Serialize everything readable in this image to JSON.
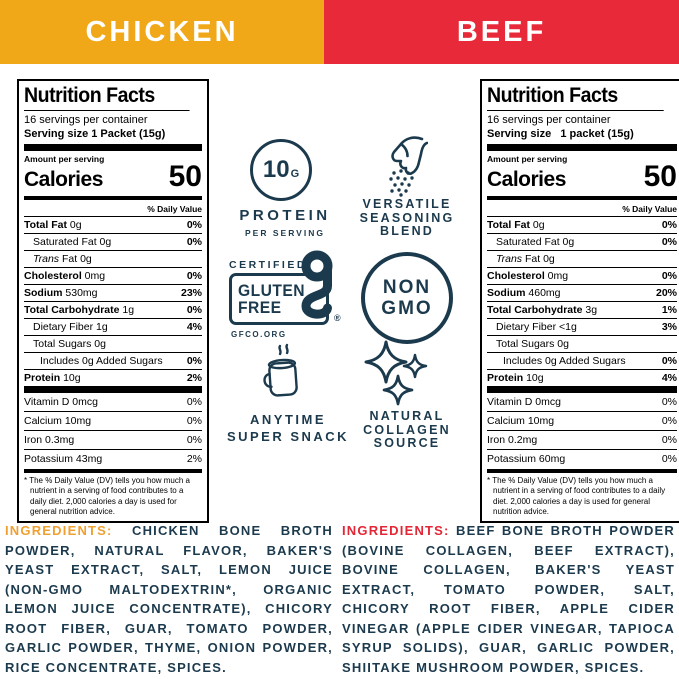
{
  "colors": {
    "yellow": "#F0A818",
    "red": "#E8293A",
    "navy": "#1C3A4D",
    "ing_left": "#F0A030",
    "ing_right": "#E32636"
  },
  "header": {
    "chicken_label": "CHICKEN",
    "beef_label": "BEEF"
  },
  "labels": [
    {
      "title": "Nutrition Facts",
      "servings_per_container": "16 servings per container",
      "serving_size": "Serving size 1 Packet (15g)",
      "amount_per_serving": "Amount per serving",
      "calories_label": "Calories",
      "calories_value": "50",
      "daily_value_header": "% Daily Value",
      "rows": [
        {
          "bold": "Total Fat",
          "text": " 0g",
          "dv": "0%",
          "dvBold": true
        },
        {
          "text": "Saturated Fat 0g",
          "dv": "0%",
          "dvBold": true,
          "style": "ind1"
        },
        {
          "italic": "Trans",
          "text": " Fat 0g",
          "style": "ind1"
        },
        {
          "bold": "Cholesterol",
          "text": " 0mg",
          "dv": "0%",
          "dvBold": true
        },
        {
          "bold": "Sodium",
          "text": " 530mg",
          "dv": "23%",
          "dvBold": true
        },
        {
          "bold": "Total Carbohydrate",
          "text": " 1g",
          "dv": "0%",
          "dvBold": true
        },
        {
          "text": "Dietary Fiber 1g",
          "dv": "4%",
          "dvBold": true,
          "style": "ind1"
        },
        {
          "text": "Total Sugars 0g",
          "style": "ind1"
        },
        {
          "text": "Includes 0g Added Sugars",
          "dv": "0%",
          "dvBold": true,
          "style": "ind2"
        },
        {
          "bold": "Protein",
          "text": " 10g",
          "dv": "2%",
          "dvBold": true
        }
      ],
      "vitamin_rows": [
        {
          "text": "Vitamin D 0mcg",
          "dv": "0%"
        },
        {
          "text": "Calcium 10mg",
          "dv": "0%"
        },
        {
          "text": "Iron 0.3mg",
          "dv": "0%"
        },
        {
          "text": "Potassium 43mg",
          "dv": "2%"
        }
      ],
      "footnote": "* The % Daily Value (DV) tells you how much a nutrient in a serving of food contributes to a daily diet. 2,000 calories a day is used for general nutrition advice."
    },
    {
      "title": "Nutrition Facts",
      "servings_per_container": "16 servings per container",
      "serving_size": "Serving size   1 packet (15g)",
      "amount_per_serving": "Amount per serving",
      "calories_label": "Calories",
      "calories_value": "50",
      "daily_value_header": "% Daily Value",
      "rows": [
        {
          "bold": "Total Fat",
          "text": " 0g",
          "dv": "0%",
          "dvBold": true
        },
        {
          "text": "Saturated Fat 0g",
          "dv": "0%",
          "dvBold": true,
          "style": "ind1"
        },
        {
          "italic": "Trans",
          "text": " Fat 0g",
          "style": "ind1"
        },
        {
          "bold": "Cholesterol",
          "text": " 0mg",
          "dv": "0%",
          "dvBold": true
        },
        {
          "bold": "Sodium",
          "text": " 460mg",
          "dv": "20%",
          "dvBold": true
        },
        {
          "bold": "Total Carbohydrate",
          "text": " 3g",
          "dv": "1%",
          "dvBold": true
        },
        {
          "text": "Dietary Fiber <1g",
          "dv": "3%",
          "dvBold": true,
          "style": "ind1"
        },
        {
          "text": "Total Sugars 0g",
          "style": "ind1"
        },
        {
          "text": "Includes 0g Added Sugars",
          "dv": "0%",
          "dvBold": true,
          "style": "ind2"
        },
        {
          "bold": "Protein",
          "text": " 10g",
          "dv": "4%",
          "dvBold": true
        }
      ],
      "vitamin_rows": [
        {
          "text": "Vitamin D 0mcg",
          "dv": "0%"
        },
        {
          "text": "Calcium 10mg",
          "dv": "0%"
        },
        {
          "text": "Iron 0.2mg",
          "dv": "0%"
        },
        {
          "text": "Potassium 60mg",
          "dv": "0%"
        }
      ],
      "footnote": "* The % Daily Value (DV) tells you how much a nutrient in a serving of food contributes to a daily diet. 2,000 calories a day is used for general nutrition advice."
    }
  ],
  "center": {
    "protein_badge": {
      "value": "10",
      "unit": "G",
      "label": "PROTEIN",
      "sublabel": "PER SERVING"
    },
    "seasoning_badge": {
      "lines": [
        "VERSATILE",
        "SEASONING",
        "BLEND"
      ]
    },
    "gluten_free_badge": {
      "certified": "CERTIFIED",
      "lines": [
        "GLUTEN",
        "FREE"
      ],
      "registered": "®",
      "org": "GFCO.ORG"
    },
    "non_gmo_badge": {
      "lines": [
        "NON",
        "GMO"
      ]
    },
    "snack_badge": {
      "lines": [
        "ANYTIME",
        "SUPER SNACK"
      ]
    },
    "collagen_badge": {
      "lines": [
        "NATURAL",
        "COLLAGEN",
        "SOURCE"
      ]
    }
  },
  "ingredients": {
    "left": {
      "heading": "INGREDIENTS:",
      "text": " CHICKEN BONE BROTH POWDER, NATURAL FLAVOR, BAKER'S YEAST EXTRACT, SALT, LEMON JUICE (NON-GMO MALTODEXTRIN*, ORGANIC LEMON JUICE CONCENTRATE), CHICORY ROOT FIBER, GUAR, TOMATO POWDER, GARLIC POWDER, THYME, ONION POWDER, RICE CONCENTRATE, SPICES."
    },
    "right": {
      "heading": "INGREDIENTS:",
      "text": " BEEF BONE BROTH POWDER (BOVINE COLLAGEN, BEEF EXTRACT), BOVINE COLLAGEN, BAKER'S YEAST EXTRACT, TOMATO POWDER, SALT, CHICORY ROOT FIBER, APPLE CIDER VINEGAR (APPLE CIDER VINEGAR, TAPIOCA SYRUP SOLIDS), GUAR, GARLIC POWDER, SHIITAKE MUSHROOM POWDER, SPICES."
    }
  }
}
